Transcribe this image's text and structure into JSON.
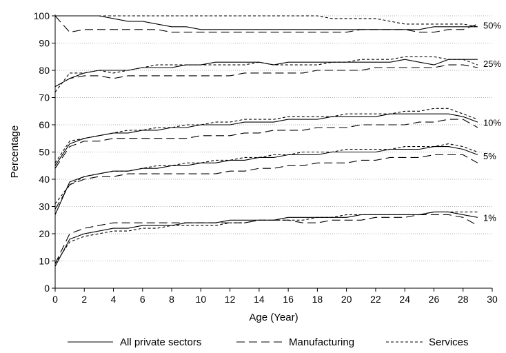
{
  "chart_data": {
    "type": "line",
    "xlabel": "Age (Year)",
    "ylabel": "Percentage",
    "xlim": [
      0,
      30
    ],
    "ylim": [
      0,
      100
    ],
    "x_ticks": [
      0,
      2,
      4,
      6,
      8,
      10,
      12,
      14,
      16,
      18,
      20,
      22,
      24,
      26,
      28,
      30
    ],
    "y_ticks": [
      0,
      10,
      20,
      30,
      40,
      50,
      60,
      70,
      80,
      90,
      100
    ],
    "grid": "horizontal dotted",
    "legend_position": "bottom",
    "x": [
      0,
      1,
      2,
      3,
      4,
      5,
      6,
      7,
      8,
      9,
      10,
      11,
      12,
      13,
      14,
      15,
      16,
      17,
      18,
      19,
      20,
      21,
      22,
      23,
      24,
      25,
      26,
      27,
      28,
      29
    ],
    "series": [
      {
        "name": "All private sectors",
        "style": "solid",
        "color": "#000000"
      },
      {
        "name": "Manufacturing",
        "style": "longdash",
        "color": "#000000"
      },
      {
        "name": "Services",
        "style": "shortdash",
        "color": "#000000"
      }
    ],
    "bands": [
      {
        "label": "50%",
        "values": {
          "All private sectors": [
            100,
            100,
            100,
            100,
            99,
            98,
            98,
            97,
            96,
            96,
            95,
            95,
            95,
            95,
            95,
            95,
            95,
            95,
            95,
            95,
            95,
            95,
            95,
            95,
            95,
            95,
            96,
            96,
            96,
            96
          ],
          "Manufacturing": [
            100,
            94,
            95,
            95,
            95,
            95,
            95,
            95,
            94,
            94,
            94,
            94,
            94,
            94,
            94,
            94,
            94,
            94,
            94,
            94,
            94,
            95,
            95,
            95,
            95,
            94,
            94,
            95,
            95,
            97
          ],
          "Services": [
            100,
            100,
            100,
            100,
            100,
            100,
            100,
            100,
            100,
            100,
            100,
            100,
            100,
            100,
            100,
            100,
            100,
            100,
            100,
            99,
            99,
            99,
            99,
            98,
            97,
            97,
            97,
            97,
            97,
            96
          ]
        }
      },
      {
        "label": "25%",
        "values": {
          "All private sectors": [
            74,
            77,
            79,
            80,
            80,
            80,
            81,
            81,
            81,
            82,
            82,
            83,
            83,
            83,
            83,
            82,
            83,
            83,
            83,
            83,
            83,
            83,
            83,
            83,
            84,
            83,
            82,
            84,
            84,
            84
          ],
          "Manufacturing": [
            74,
            77,
            78,
            78,
            77,
            78,
            78,
            78,
            78,
            78,
            78,
            78,
            78,
            79,
            79,
            79,
            79,
            79,
            80,
            80,
            80,
            80,
            81,
            81,
            81,
            81,
            81,
            82,
            82,
            81
          ],
          "Services": [
            72,
            79,
            79,
            80,
            79,
            80,
            81,
            82,
            82,
            82,
            82,
            82,
            82,
            82,
            83,
            82,
            82,
            82,
            82,
            83,
            83,
            84,
            84,
            84,
            85,
            85,
            85,
            84,
            84,
            82
          ]
        }
      },
      {
        "label": "10%",
        "values": {
          "All private sectors": [
            45,
            53,
            55,
            56,
            57,
            57,
            58,
            58,
            59,
            59,
            60,
            60,
            60,
            61,
            61,
            61,
            62,
            62,
            62,
            63,
            63,
            63,
            63,
            64,
            64,
            64,
            64,
            64,
            63,
            61
          ],
          "Manufacturing": [
            44,
            52,
            54,
            54,
            55,
            55,
            55,
            55,
            55,
            55,
            56,
            56,
            56,
            57,
            57,
            58,
            58,
            58,
            59,
            59,
            59,
            60,
            60,
            60,
            60,
            61,
            61,
            62,
            62,
            59
          ],
          "Services": [
            46,
            54,
            55,
            56,
            57,
            58,
            58,
            59,
            59,
            60,
            60,
            61,
            61,
            62,
            62,
            62,
            63,
            63,
            63,
            63,
            64,
            64,
            64,
            64,
            65,
            65,
            66,
            66,
            64,
            62
          ]
        }
      },
      {
        "label": "5%",
        "values": {
          "All private sectors": [
            27,
            39,
            41,
            42,
            43,
            43,
            44,
            44,
            45,
            45,
            46,
            46,
            47,
            47,
            48,
            48,
            49,
            49,
            49,
            50,
            50,
            50,
            50,
            51,
            51,
            51,
            52,
            52,
            51,
            49
          ],
          "Manufacturing": [
            29,
            38,
            40,
            41,
            41,
            42,
            42,
            42,
            42,
            42,
            42,
            42,
            43,
            43,
            44,
            44,
            45,
            45,
            46,
            46,
            46,
            47,
            47,
            48,
            48,
            48,
            49,
            49,
            49,
            46
          ],
          "Services": [
            31,
            38,
            41,
            42,
            43,
            43,
            44,
            45,
            45,
            46,
            46,
            47,
            47,
            48,
            48,
            49,
            49,
            50,
            50,
            50,
            51,
            51,
            51,
            51,
            52,
            52,
            52,
            53,
            52,
            50
          ]
        }
      },
      {
        "label": "1%",
        "values": {
          "All private sectors": [
            8,
            18,
            20,
            21,
            22,
            22,
            23,
            23,
            23,
            24,
            24,
            24,
            25,
            25,
            25,
            25,
            26,
            26,
            26,
            26,
            26,
            27,
            27,
            27,
            27,
            27,
            28,
            28,
            27,
            26
          ],
          "Manufacturing": [
            9,
            20,
            22,
            23,
            24,
            24,
            24,
            24,
            24,
            24,
            24,
            24,
            24,
            24,
            25,
            25,
            25,
            24,
            24,
            25,
            25,
            25,
            26,
            26,
            26,
            27,
            27,
            27,
            26,
            23
          ],
          "Services": [
            9,
            17,
            19,
            20,
            21,
            21,
            22,
            22,
            23,
            23,
            23,
            23,
            24,
            24,
            25,
            25,
            25,
            25,
            26,
            26,
            27,
            27,
            27,
            27,
            27,
            27,
            28,
            28,
            28,
            28
          ]
        }
      }
    ]
  }
}
